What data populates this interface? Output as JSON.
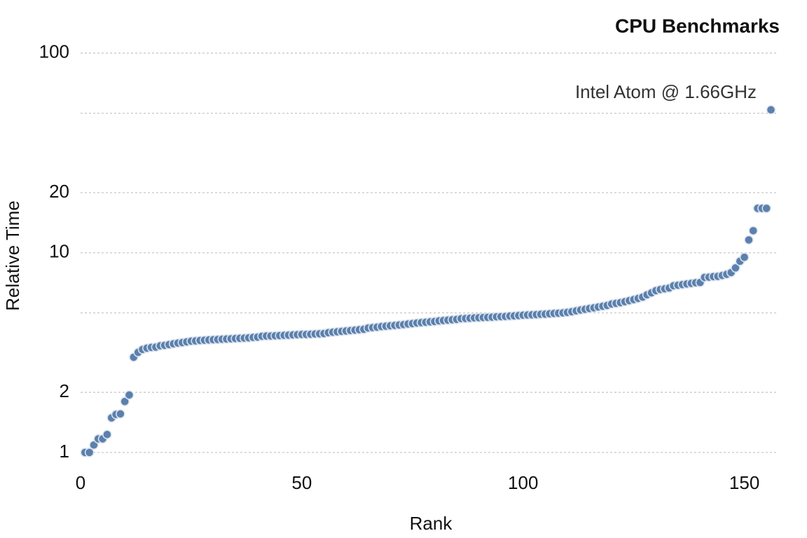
{
  "chart_data": {
    "type": "scatter",
    "title": "CPU Benchmarks",
    "xlabel": "Rank",
    "ylabel": "Relative Time",
    "annotation": "Intel Atom @ 1.66GHz",
    "log_y": true,
    "grid": true,
    "color": "#5b80ad",
    "xlim": [
      0,
      157.5
    ],
    "xticks": [
      0,
      50,
      100,
      150
    ],
    "ylim": [
      0.85,
      110
    ],
    "yticks": [
      1,
      2,
      10,
      20,
      100
    ],
    "minor_gridlines": [
      5,
      50
    ],
    "x": [
      1,
      2,
      3,
      4,
      5,
      6,
      7,
      8,
      9,
      10,
      11,
      12,
      13,
      14,
      15,
      16,
      17,
      18,
      19,
      20,
      21,
      22,
      23,
      24,
      25,
      26,
      27,
      28,
      29,
      30,
      31,
      32,
      33,
      34,
      35,
      36,
      37,
      38,
      39,
      40,
      41,
      42,
      43,
      44,
      45,
      46,
      47,
      48,
      49,
      50,
      51,
      52,
      53,
      54,
      55,
      56,
      57,
      58,
      59,
      60,
      61,
      62,
      63,
      64,
      65,
      66,
      67,
      68,
      69,
      70,
      71,
      72,
      73,
      74,
      75,
      76,
      77,
      78,
      79,
      80,
      81,
      82,
      83,
      84,
      85,
      86,
      87,
      88,
      89,
      90,
      91,
      92,
      93,
      94,
      95,
      96,
      97,
      98,
      99,
      100,
      101,
      102,
      103,
      104,
      105,
      106,
      107,
      108,
      109,
      110,
      111,
      112,
      113,
      114,
      115,
      116,
      117,
      118,
      119,
      120,
      121,
      122,
      123,
      124,
      125,
      126,
      127,
      128,
      129,
      130,
      131,
      132,
      133,
      134,
      135,
      136,
      137,
      138,
      139,
      140,
      141,
      142,
      143,
      144,
      145,
      146,
      147,
      148,
      149,
      150,
      151,
      152,
      153,
      154,
      155,
      156
    ],
    "values": [
      1,
      1,
      1.09,
      1.17,
      1.17,
      1.23,
      1.49,
      1.55,
      1.56,
      1.8,
      1.94,
      3.0,
      3.17,
      3.28,
      3.33,
      3.36,
      3.37,
      3.42,
      3.44,
      3.47,
      3.5,
      3.53,
      3.55,
      3.58,
      3.61,
      3.62,
      3.64,
      3.65,
      3.66,
      3.67,
      3.68,
      3.69,
      3.7,
      3.71,
      3.72,
      3.73,
      3.74,
      3.75,
      3.77,
      3.78,
      3.82,
      3.83,
      3.83,
      3.84,
      3.85,
      3.86,
      3.87,
      3.88,
      3.89,
      3.9,
      3.9,
      3.91,
      3.92,
      3.93,
      3.94,
      3.98,
      4.0,
      4.02,
      4.04,
      4.06,
      4.08,
      4.1,
      4.12,
      4.14,
      4.2,
      4.22,
      4.24,
      4.27,
      4.29,
      4.31,
      4.33,
      4.35,
      4.37,
      4.4,
      4.42,
      4.45,
      4.47,
      4.49,
      4.51,
      4.53,
      4.56,
      4.58,
      4.6,
      4.62,
      4.64,
      4.68,
      4.69,
      4.7,
      4.72,
      4.73,
      4.74,
      4.75,
      4.76,
      4.78,
      4.79,
      4.8,
      4.82,
      4.83,
      4.85,
      4.87,
      4.88,
      4.89,
      4.9,
      4.92,
      4.93,
      4.95,
      4.97,
      4.98,
      5.0,
      5.03,
      5.07,
      5.12,
      5.17,
      5.21,
      5.26,
      5.3,
      5.35,
      5.4,
      5.45,
      5.54,
      5.58,
      5.63,
      5.69,
      5.76,
      5.83,
      5.91,
      6.0,
      6.16,
      6.3,
      6.46,
      6.55,
      6.6,
      6.66,
      6.84,
      6.88,
      6.93,
      6.98,
      7.03,
      7.08,
      7.1,
      7.53,
      7.55,
      7.6,
      7.62,
      7.7,
      7.8,
      7.96,
      8.4,
      9.07,
      9.5,
      11.6,
      12.9,
      16.7,
      16.7,
      16.7,
      52
    ]
  }
}
